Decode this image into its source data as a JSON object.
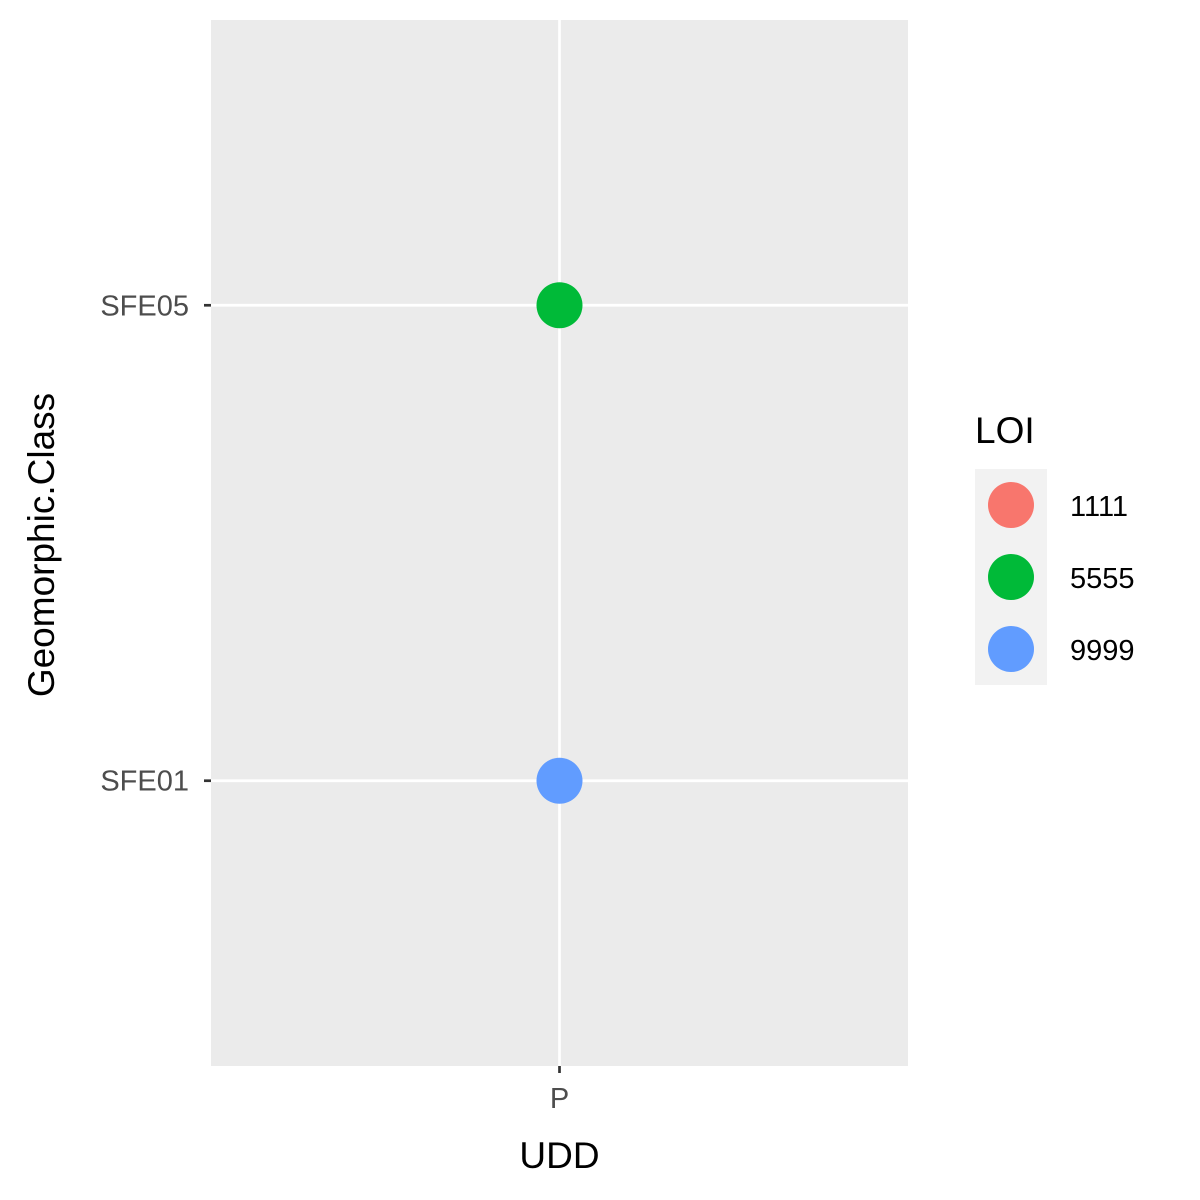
{
  "chart_data": {
    "type": "scatter",
    "title": "",
    "xlabel": "UDD",
    "ylabel": "Geomorphic.Class",
    "x_categories": [
      "P"
    ],
    "y_categories": [
      "SFE01",
      "SFE05"
    ],
    "points": [
      {
        "x": "P",
        "y": "SFE05",
        "LOI": "5555"
      },
      {
        "x": "P",
        "y": "SFE01",
        "LOI": "9999"
      }
    ],
    "legend": {
      "title": "LOI",
      "placement": "right",
      "entries": [
        {
          "label": "1111",
          "color": "#F8766D"
        },
        {
          "label": "5555",
          "color": "#00BA38"
        },
        {
          "label": "9999",
          "color": "#619CFF"
        }
      ]
    },
    "grid": true,
    "panel_background": "#EBEBEB",
    "gridline_color": "#FFFFFF"
  }
}
